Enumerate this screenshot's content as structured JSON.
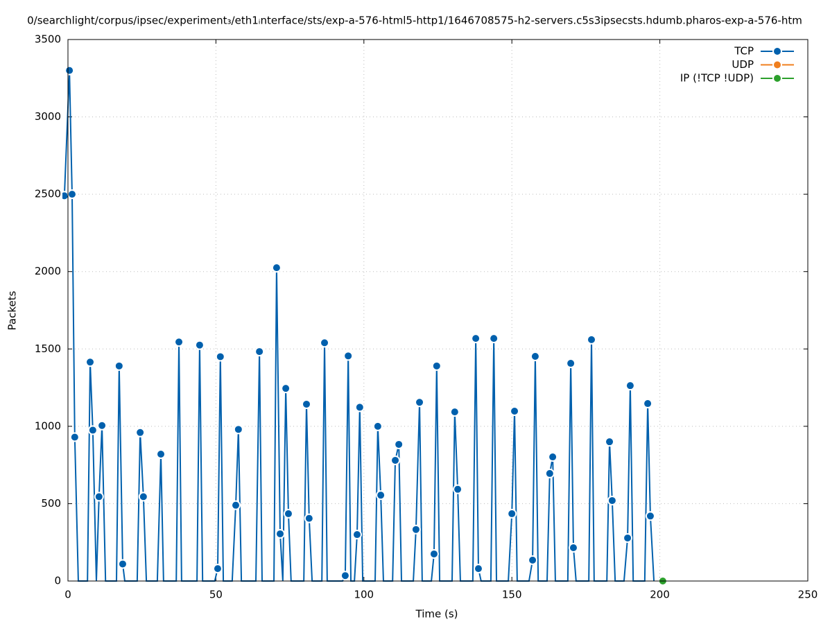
{
  "chart_data": {
    "type": "line",
    "title": "0/searchlight/corpus/ipsec/experiment₃/eth1ᵢnterface/sts/exp-a-576-html5-http1/1646708575-h2-servers.c5s3ipsecsts.hdumb.pharos-exp-a-576-htm",
    "x_label": "Time (s)",
    "y_label": "Packets",
    "xlim": [
      0,
      250
    ],
    "ylim": [
      0,
      3500
    ],
    "xticks": [
      0,
      50,
      100,
      150,
      200,
      250
    ],
    "yticks": [
      0,
      500,
      1000,
      1500,
      2000,
      2500,
      3000,
      3500
    ],
    "grid": true,
    "legend": "top-right",
    "series": [
      {
        "name": "TCP",
        "color": "#0060ad",
        "x": [
          -1.2,
          0.5,
          1.4,
          2.3,
          3.5,
          6.6,
          7.5,
          8.4,
          9.6,
          10.5,
          11.5,
          12.7,
          16.4,
          17.3,
          18.5,
          19.2,
          23.4,
          24.4,
          25.5,
          26.5,
          30.2,
          31.4,
          32.3,
          36.6,
          37.5,
          38.4,
          43.6,
          44.5,
          45.5,
          49.6,
          50.6,
          51.5,
          52.5,
          55.5,
          56.7,
          57.6,
          58.6,
          63.5,
          64.7,
          65.6,
          69.6,
          70.5,
          71.7,
          72.6,
          73.6,
          74.5,
          75.4,
          79.7,
          80.6,
          81.5,
          82.5,
          85.8,
          86.7,
          87.6,
          92.8,
          93.7,
          94.7,
          95.6,
          96.8,
          97.7,
          98.6,
          99.6,
          103.8,
          104.7,
          105.7,
          106.6,
          109.7,
          110.6,
          111.8,
          112.7,
          116.7,
          117.6,
          118.8,
          119.7,
          122.8,
          123.7,
          124.6,
          125.6,
          129.8,
          130.7,
          131.7,
          132.6,
          136.8,
          137.8,
          138.7,
          139.6,
          142.9,
          143.9,
          144.8,
          148.8,
          150.0,
          150.9,
          151.8,
          155.8,
          157.0,
          157.9,
          158.9,
          161.9,
          162.8,
          163.8,
          164.7,
          168.9,
          169.9,
          170.8,
          171.7,
          176.0,
          176.9,
          177.8,
          182.1,
          183.0,
          183.9,
          184.9,
          187.9,
          189.1,
          190.0,
          191.0,
          194.9,
          195.9,
          196.8,
          198.0
        ],
        "values": [
          2490,
          3300,
          2500,
          930,
          0,
          0,
          1415,
          975,
          0,
          545,
          1005,
          0,
          0,
          1390,
          110,
          0,
          0,
          960,
          545,
          0,
          0,
          820,
          0,
          0,
          1545,
          0,
          0,
          1525,
          0,
          0,
          80,
          1450,
          0,
          0,
          490,
          980,
          0,
          0,
          1483,
          0,
          0,
          2025,
          305,
          0,
          1245,
          435,
          0,
          0,
          1143,
          405,
          0,
          0,
          1540,
          0,
          0,
          35,
          1455,
          0,
          0,
          300,
          1123,
          0,
          0,
          1000,
          555,
          0,
          0,
          780,
          883,
          0,
          0,
          333,
          1155,
          0,
          0,
          175,
          1390,
          0,
          0,
          1093,
          593,
          0,
          0,
          1568,
          80,
          0,
          0,
          1568,
          0,
          0,
          435,
          1098,
          0,
          0,
          135,
          1452,
          0,
          0,
          695,
          802,
          0,
          0,
          1407,
          215,
          0,
          0,
          1560,
          0,
          0,
          900,
          520,
          0,
          0,
          278,
          1263,
          0,
          0,
          1147,
          420,
          0
        ]
      },
      {
        "name": "UDP",
        "color": "#f07f1e",
        "x": [],
        "values": []
      },
      {
        "name": "IP (!TCP  !UDP)",
        "color": "#2ca02c",
        "x": [
          201.0
        ],
        "values": [
          0
        ]
      }
    ]
  }
}
